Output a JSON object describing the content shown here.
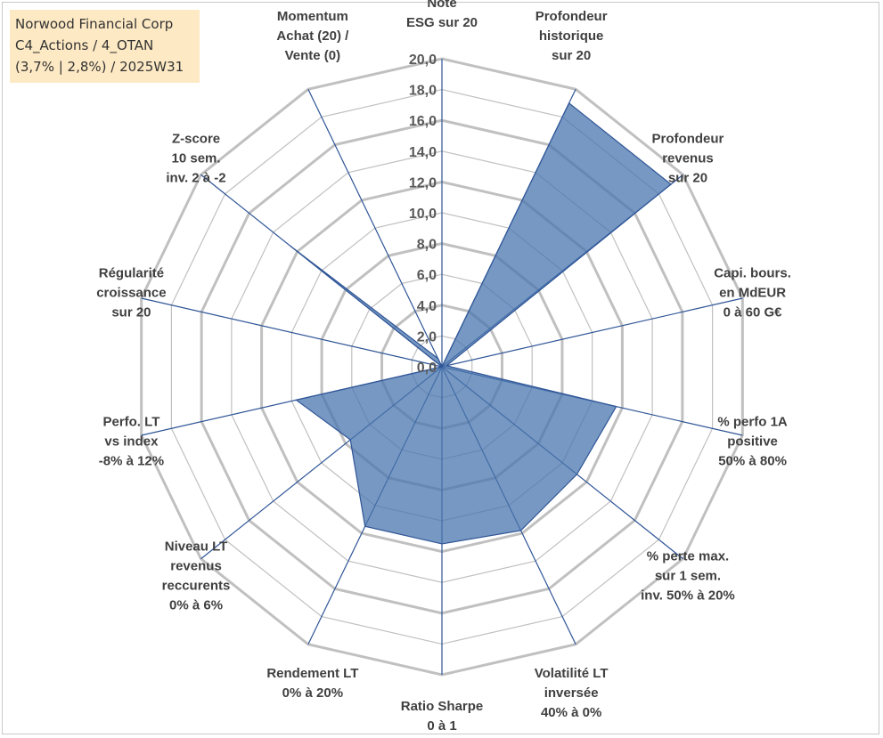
{
  "title_box": {
    "lines": [
      "Norwood Financial Corp",
      "C4_Actions / 4_OTAN",
      "(3,7% | 2,8%) / 2025W31"
    ]
  },
  "colors": {
    "grid": "#c0c0c0",
    "spoke": "#2f5597",
    "fill": "#4a76ad",
    "title_bg": "#fde9c4"
  },
  "chart_data": {
    "type": "radar",
    "r_range": [
      0,
      20
    ],
    "r_ticks": [
      "0,0",
      "2,0",
      "4,0",
      "6,0",
      "8,0",
      "10,0",
      "12,0",
      "14,0",
      "16,0",
      "18,0",
      "20,0"
    ],
    "grid": true,
    "legend": "none",
    "axes": [
      [
        "Note",
        "ESG sur 20"
      ],
      [
        "Profondeur",
        "historique",
        "sur 20"
      ],
      [
        "Profondeur",
        "revenus",
        "sur 20"
      ],
      [
        "Capi. bours.",
        "en MdEUR",
        "0 à 60 G€"
      ],
      [
        "% perfo 1A",
        "positive",
        "50% à 80%"
      ],
      [
        "% perte max.",
        "sur 1 sem.",
        "inv. 50% à 20%"
      ],
      [
        "Volatilité LT",
        "inversée",
        "40% à 0%"
      ],
      [
        "Ratio Sharpe",
        "0 à 1"
      ],
      [
        "Rendement LT",
        "0% à 20%"
      ],
      [
        "Niveau LT",
        "revenus",
        "reccurents",
        "0% à 6%"
      ],
      [
        "Perfo. LT",
        "vs index",
        "-8% à 12%"
      ],
      [
        "Régularité",
        "croissance",
        "sur 20"
      ],
      [
        "Z-score",
        "10 sem.",
        "inv. 2 à -2"
      ],
      [
        "Momentum",
        "Achat (20) /",
        "Vente (0)"
      ]
    ],
    "values": [
      0,
      19,
      19,
      0.3,
      11.6,
      11.2,
      11.8,
      11.5,
      11.5,
      7.6,
      9.7,
      0,
      12.6,
      0.6
    ]
  }
}
